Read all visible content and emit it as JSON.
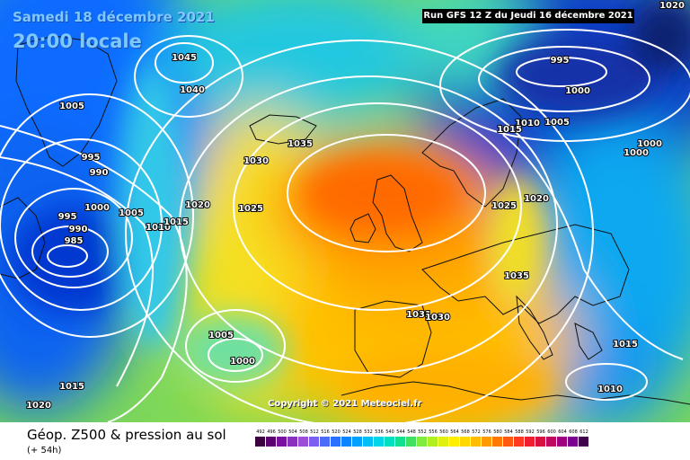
{
  "title": {
    "date": "Samedi 18 décembre 2021",
    "time": "20:00 locale",
    "run": "Run GFS 12 Z du Jeudi 16 décembre 2021"
  },
  "copyright": "Copyright © 2021 Meteociel.fr",
  "footer": {
    "title": "Géop. Z500 & pression au sol",
    "subtitle": "(+ 54h)"
  },
  "legend": {
    "values": [
      "492",
      "496",
      "500",
      "504",
      "508",
      "512",
      "516",
      "520",
      "524",
      "528",
      "532",
      "536",
      "540",
      "544",
      "548",
      "552",
      "556",
      "560",
      "564",
      "568",
      "572",
      "576",
      "580",
      "584",
      "588",
      "592",
      "596",
      "600",
      "604",
      "608",
      "612"
    ],
    "colors": [
      "#3a0040",
      "#5a0070",
      "#7a10a0",
      "#8a30c0",
      "#9b4fd8",
      "#7a5ff0",
      "#4a6cf8",
      "#2a70ff",
      "#0a84ff",
      "#00a0ff",
      "#00bef8",
      "#00d6e8",
      "#00e0c0",
      "#10e090",
      "#40e060",
      "#80ec40",
      "#b0f020",
      "#e0f010",
      "#ffee00",
      "#ffd800",
      "#ffbc00",
      "#ff9a00",
      "#ff7800",
      "#ff5a10",
      "#ff3a20",
      "#f01e30",
      "#d81040",
      "#c00860",
      "#a00080",
      "#7a0090",
      "#40004a"
    ]
  },
  "isobar_labels": [
    "1020",
    "1045",
    "1040",
    "1005",
    "995",
    "990",
    "1000",
    "1005",
    "995",
    "990",
    "985",
    "1010",
    "1015",
    "1020",
    "1025",
    "1030",
    "1035",
    "995",
    "1000",
    "1010",
    "1005",
    "1015",
    "1000",
    "1000",
    "1020",
    "1025",
    "1035",
    "1031",
    "1030",
    "1005",
    "1000",
    "1015",
    "1020",
    "1015",
    "1010"
  ]
}
